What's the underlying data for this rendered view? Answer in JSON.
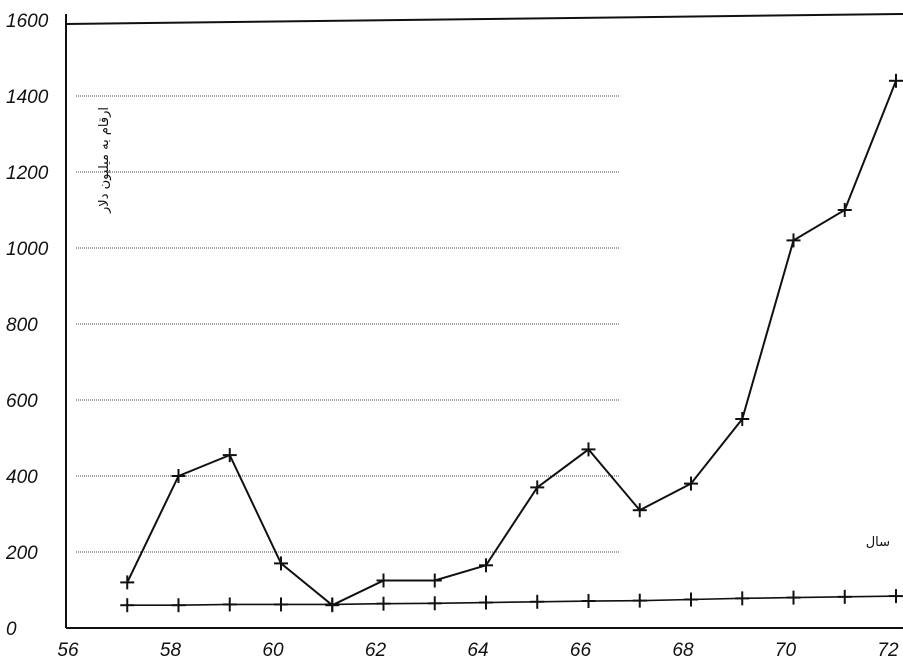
{
  "chart_data": {
    "type": "line",
    "title": "",
    "ylabel": "ارقام به میلیون دلار",
    "xlabel": "سال",
    "x_ticks": [
      "56",
      "58",
      "60",
      "62",
      "64",
      "66",
      "68",
      "70",
      "72"
    ],
    "y_ticks": [
      "0",
      "200",
      "400",
      "600",
      "800",
      "1000",
      "1200",
      "1400",
      "1600"
    ],
    "xlim": [
      56,
      72
    ],
    "ylim": [
      0,
      1600
    ],
    "grid": true,
    "series": [
      {
        "x": [
          57,
          58,
          59,
          60,
          61,
          62,
          63,
          64,
          65,
          66,
          67,
          68,
          69,
          70,
          71,
          72
        ],
        "values": [
          120,
          400,
          455,
          170,
          60,
          125,
          125,
          165,
          370,
          470,
          310,
          380,
          550,
          1020,
          1100,
          1440
        ]
      },
      {
        "x": [
          57,
          58,
          59,
          60,
          61,
          62,
          63,
          64,
          65,
          66,
          67,
          68,
          69,
          70,
          71,
          72
        ],
        "values": [
          60,
          60,
          62,
          62,
          62,
          64,
          65,
          67,
          69,
          71,
          72,
          75,
          78,
          80,
          82,
          84
        ]
      }
    ]
  },
  "colors": {
    "line": "#111111",
    "grid": "#444444"
  }
}
